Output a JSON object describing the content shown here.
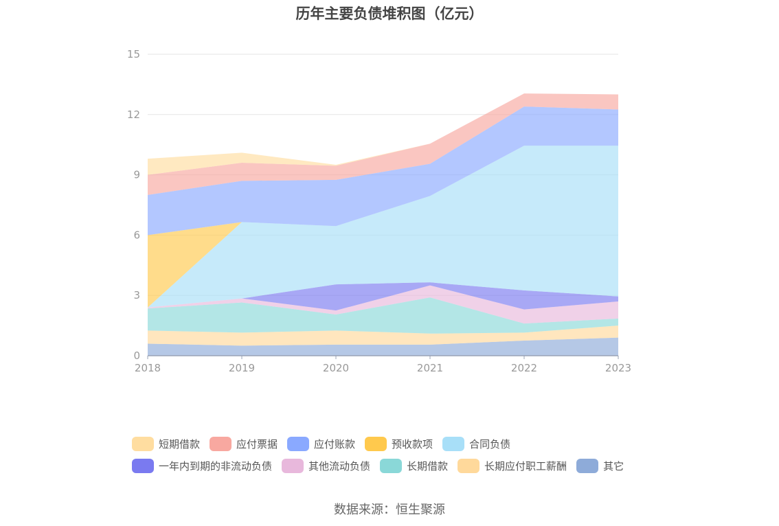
{
  "chart_data": {
    "type": "area",
    "stacked": true,
    "title": "历年主要负债堆积图（亿元）",
    "x": [
      "2018",
      "2019",
      "2020",
      "2021",
      "2022",
      "2023"
    ],
    "ylim": [
      0,
      15
    ],
    "yticks": [
      "0",
      "3",
      "6",
      "9",
      "12",
      "15"
    ],
    "grid": true,
    "legend_position": "bottom",
    "series": [
      {
        "name": "其它",
        "color": "#8eabd9",
        "values": [
          0.6,
          0.5,
          0.55,
          0.55,
          0.75,
          0.9
        ]
      },
      {
        "name": "长期应付职工薪酬",
        "color": "#ffd99b",
        "values": [
          0.65,
          0.65,
          0.7,
          0.55,
          0.4,
          0.6
        ]
      },
      {
        "name": "长期借款",
        "color": "#8ad8d8",
        "values": [
          1.1,
          1.5,
          0.8,
          1.8,
          0.45,
          0.35
        ]
      },
      {
        "name": "其他流动负债",
        "color": "#e8b8dc",
        "values": [
          0.05,
          0.2,
          0.2,
          0.6,
          0.7,
          0.85
        ]
      },
      {
        "name": "一年内到期的非流动负债",
        "color": "#7a7af0",
        "values": [
          0.0,
          0.0,
          1.3,
          0.15,
          0.95,
          0.25
        ]
      },
      {
        "name": "合同负债",
        "color": "#a8dff8",
        "values": [
          0.0,
          3.8,
          2.9,
          4.3,
          7.2,
          7.5
        ]
      },
      {
        "name": "预收款项",
        "color": "#ffc94d",
        "values": [
          3.6,
          0.0,
          0.0,
          0.0,
          0.0,
          0.0
        ]
      },
      {
        "name": "应付账款",
        "color": "#8aa9ff",
        "values": [
          2.0,
          2.05,
          2.3,
          1.6,
          1.95,
          1.8
        ]
      },
      {
        "name": "应付票据",
        "color": "#f8a8a0",
        "values": [
          1.0,
          0.9,
          0.7,
          1.0,
          0.65,
          0.75
        ]
      },
      {
        "name": "短期借款",
        "color": "#ffdda0",
        "values": [
          0.8,
          0.5,
          0.05,
          0.0,
          0.0,
          0.0
        ]
      }
    ]
  },
  "legend": {
    "row1": [
      "短期借款",
      "应付票据",
      "应付账款",
      "预收款项",
      "合同负债"
    ],
    "row2": [
      "一年内到期的非流动负债",
      "其他流动负债",
      "长期借款",
      "长期应付职工薪酬",
      "其它"
    ]
  },
  "source": "数据来源：恒生聚源"
}
